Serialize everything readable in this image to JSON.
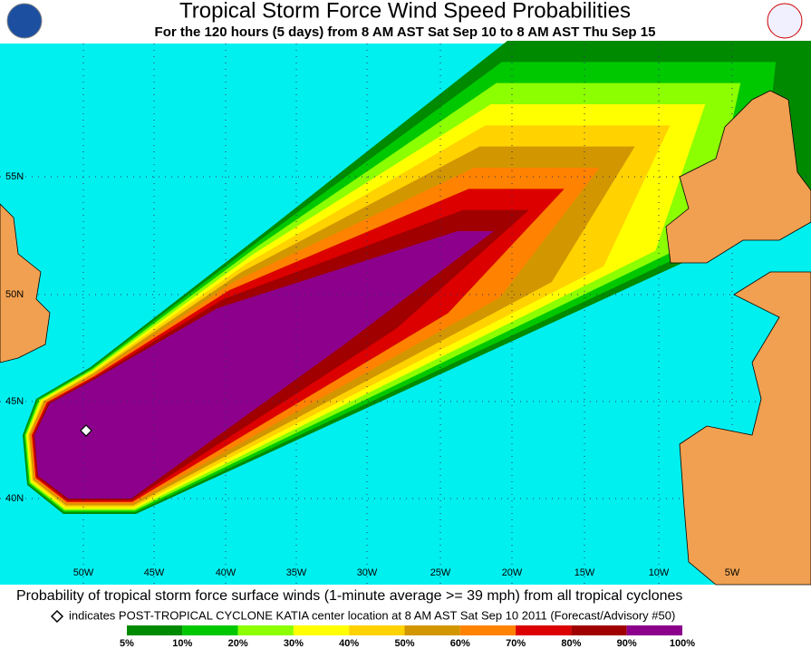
{
  "header": {
    "title": "Tropical Storm Force Wind Speed Probabilities",
    "subtitle": "For the 120 hours (5 days) from 8 AM AST Sat Sep 10 to 8 AM AST Thu Sep 15"
  },
  "map": {
    "lat_labels": [
      "55N",
      "50N",
      "45N",
      "40N"
    ],
    "lon_labels": [
      "50W",
      "45W",
      "40W",
      "35W",
      "30W",
      "25W",
      "20W",
      "15W",
      "10W",
      "5W"
    ]
  },
  "footer": {
    "caption": "Probability of tropical storm force surface winds (1-minute average >= 39 mph) from all tropical cyclones",
    "note": "indicates POST-TROPICAL CYCLONE KATIA center location at 8 AM AST Sat Sep 10 2011 (Forecast/Advisory #50)"
  },
  "legend": {
    "labels": [
      "5%",
      "10%",
      "20%",
      "30%",
      "40%",
      "50%",
      "60%",
      "70%",
      "80%",
      "90%",
      "100%"
    ],
    "colors": [
      "#008a00",
      "#00c800",
      "#8cff00",
      "#ffff00",
      "#ffd200",
      "#d29600",
      "#ff8200",
      "#dc0000",
      "#a00000",
      "#8c008c"
    ]
  }
}
